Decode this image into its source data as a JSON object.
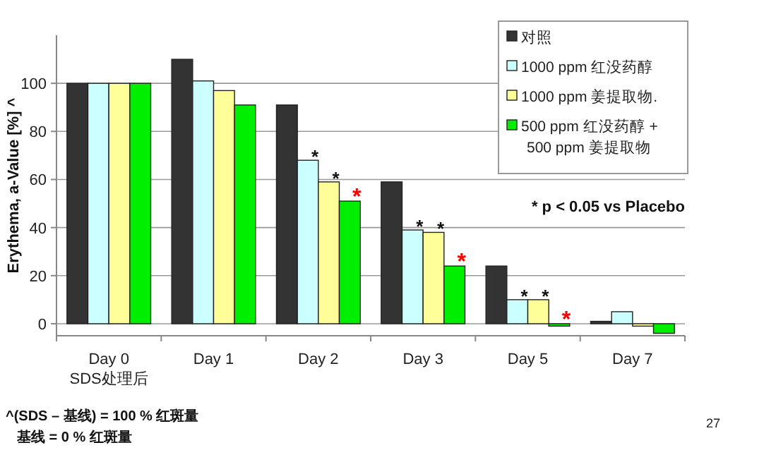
{
  "chart_data": {
    "type": "bar",
    "ylabel": "Erythema, a-Value [%] ^",
    "categories": [
      "Day 0\nSDS处理后",
      "Day 1",
      "Day 2",
      "Day 3",
      "Day 5",
      "Day 7"
    ],
    "series": [
      {
        "name": "对照",
        "color": "#333333",
        "values": [
          100,
          110,
          91,
          59,
          24,
          1
        ]
      },
      {
        "name": "1000 ppm 红没药醇",
        "color": "#ccffff",
        "values": [
          100,
          101,
          68,
          39,
          10,
          5
        ]
      },
      {
        "name": "1000 ppm 姜提取物.",
        "color": "#ffff99",
        "values": [
          100,
          97,
          59,
          38,
          10,
          -1
        ]
      },
      {
        "name": "500 ppm 红没药醇 +\n500 ppm 姜提取物",
        "color": "#00ee00",
        "values": [
          100,
          91,
          51,
          24,
          -1,
          -4
        ]
      }
    ],
    "ylim": [
      -5,
      120
    ],
    "yticks": [
      0,
      20,
      40,
      60,
      80,
      100
    ],
    "grid": "y",
    "legend": "top right",
    "annotations": [
      {
        "text": "*",
        "x": "Day 2",
        "y": 68
      },
      {
        "text": "*",
        "x": "Day 2",
        "y": 59
      },
      {
        "text": "*",
        "x": "Day 2",
        "y": 51
      },
      {
        "text": "*",
        "x": "Day 3",
        "y": 39
      },
      {
        "text": "*",
        "x": "Day 3",
        "y": 38
      },
      {
        "text": "*",
        "x": "Day 3",
        "y": 24
      },
      {
        "text": "*",
        "x": "Day 5",
        "y": 10
      },
      {
        "text": "*",
        "x": "Day 5",
        "y": 10
      },
      {
        "text": "*",
        "x": "Day 5",
        "y": -1
      },
      "* p < 0.05 vs Placebo",
      "^(SDS – 基线) = 100 % 红斑量",
      "基线 = 0 % 红斑量",
      "27"
    ]
  }
}
